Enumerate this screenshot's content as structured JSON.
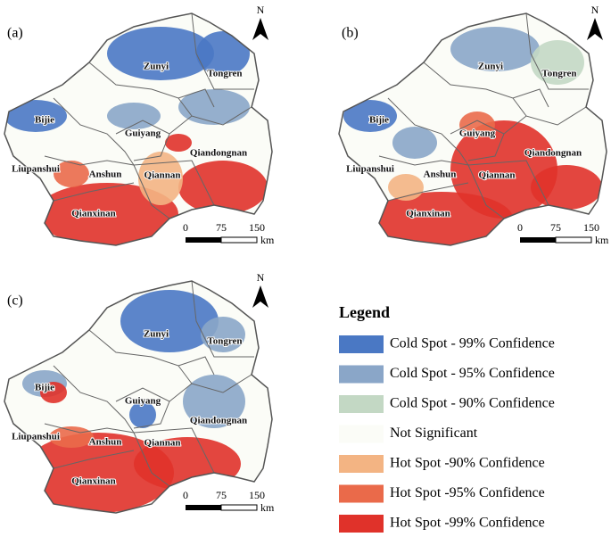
{
  "panels": [
    {
      "label": "(a)",
      "north": "N",
      "regions": [
        "Zunyi",
        "Tongren",
        "Bijie",
        "Guiyang",
        "Qiandongnan",
        "Liupanshui",
        "Anshun",
        "Qiannan",
        "Qianxinan"
      ],
      "scale_ticks": [
        0,
        75,
        150
      ],
      "scale_unit": "km"
    },
    {
      "label": "(b)",
      "north": "N",
      "regions": [
        "Zunyi",
        "Tongren",
        "Bijie",
        "Guiyang",
        "Qiandongnan",
        "Liupanshui",
        "Anshun",
        "Qiannan",
        "Qianxinan"
      ],
      "scale_ticks": [
        0,
        75,
        150
      ],
      "scale_unit": "km"
    },
    {
      "label": "(c)",
      "north": "N",
      "regions": [
        "Zunyi",
        "Tongren",
        "Bijie",
        "Guiyang",
        "Qiandongnan",
        "Liupanshui",
        "Anshun",
        "Qiannan",
        "Qianxinan"
      ],
      "scale_ticks": [
        0,
        75,
        150
      ],
      "scale_unit": "km"
    }
  ],
  "legend": {
    "title": "Legend",
    "items": [
      {
        "label": "Cold Spot - 99% Confidence",
        "color": "#4a78c4"
      },
      {
        "label": "Cold Spot - 95% Confidence",
        "color": "#8aa6c8"
      },
      {
        "label": "Cold Spot - 90% Confidence",
        "color": "#c3d8c4"
      },
      {
        "label": "Not Significant",
        "color": "#fbfcf7"
      },
      {
        "label": "Hot Spot -90% Confidence",
        "color": "#f3b483"
      },
      {
        "label": "Hot Spot -95% Confidence",
        "color": "#ea6a4a"
      },
      {
        "label": "Hot Spot -99% Confidence",
        "color": "#e0322a"
      }
    ]
  }
}
